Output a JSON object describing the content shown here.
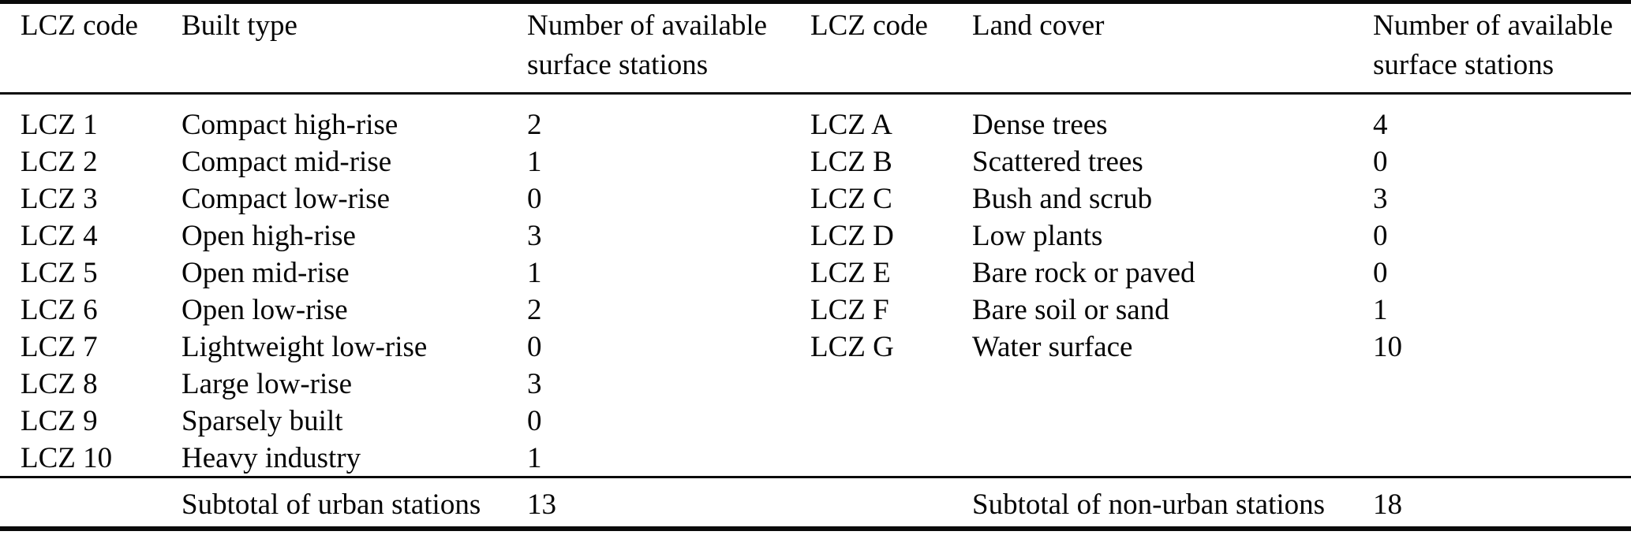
{
  "colors": {
    "background": "#ffffff",
    "text": "#050505",
    "rule": "#0a0a0a"
  },
  "tables": {
    "left": {
      "headers": [
        "LCZ code",
        "Built type",
        "Number of available surface stations"
      ],
      "rows": [
        {
          "code": "LCZ 1",
          "type": "Compact high-rise",
          "count": "2"
        },
        {
          "code": "LCZ 2",
          "type": "Compact mid-rise",
          "count": "1"
        },
        {
          "code": "LCZ 3",
          "type": "Compact low-rise",
          "count": "0"
        },
        {
          "code": "LCZ 4",
          "type": "Open high-rise",
          "count": "3"
        },
        {
          "code": "LCZ 5",
          "type": "Open mid-rise",
          "count": "1"
        },
        {
          "code": "LCZ 6",
          "type": "Open low-rise",
          "count": "2"
        },
        {
          "code": "LCZ 7",
          "type": "Lightweight low-rise",
          "count": "0"
        },
        {
          "code": "LCZ 8",
          "type": "Large low-rise",
          "count": "3"
        },
        {
          "code": "LCZ 9",
          "type": "Sparsely built",
          "count": "0"
        },
        {
          "code": "LCZ 10",
          "type": "Heavy industry",
          "count": "1"
        }
      ],
      "subtotal": {
        "label": "Subtotal of urban stations",
        "count": "13"
      }
    },
    "right": {
      "headers": [
        "LCZ code",
        "Land cover",
        "Number of available surface stations"
      ],
      "rows": [
        {
          "code": "LCZ A",
          "type": "Dense trees",
          "count": "4"
        },
        {
          "code": "LCZ B",
          "type": "Scattered trees",
          "count": "0"
        },
        {
          "code": "LCZ C",
          "type": "Bush and scrub",
          "count": "3"
        },
        {
          "code": "LCZ D",
          "type": "Low plants",
          "count": "0"
        },
        {
          "code": "LCZ E",
          "type": "Bare rock or paved",
          "count": "0"
        },
        {
          "code": "LCZ F",
          "type": "Bare soil or sand",
          "count": "1"
        },
        {
          "code": "LCZ G",
          "type": "Water surface",
          "count": "10"
        }
      ],
      "subtotal": {
        "label": "Subtotal of non-urban stations",
        "count": "18"
      }
    }
  }
}
